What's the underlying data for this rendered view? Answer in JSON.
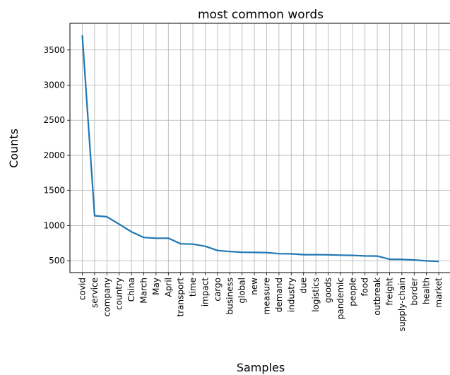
{
  "chart_data": {
    "type": "line",
    "title": "most common words",
    "xlabel": "Samples",
    "ylabel": "Counts",
    "categories": [
      "covid",
      "service",
      "company",
      "country",
      "China",
      "March",
      "May",
      "April",
      "transport",
      "time",
      "impact",
      "cargo",
      "business",
      "global",
      "new",
      "measure",
      "demand",
      "industry",
      "due",
      "logistics",
      "goods",
      "pandemic",
      "people",
      "food",
      "outbreak",
      "freight",
      "supply-chain",
      "border",
      "health",
      "market"
    ],
    "values": [
      3710,
      1140,
      1125,
      1020,
      910,
      830,
      820,
      820,
      740,
      735,
      705,
      645,
      630,
      620,
      618,
      615,
      600,
      598,
      585,
      585,
      583,
      578,
      575,
      567,
      565,
      520,
      518,
      510,
      497,
      490
    ],
    "yticks": [
      500,
      1000,
      1500,
      2000,
      2500,
      3000,
      3500
    ],
    "ylim": [
      330,
      3880
    ],
    "grid": true,
    "line_color": "#1f77b4"
  }
}
